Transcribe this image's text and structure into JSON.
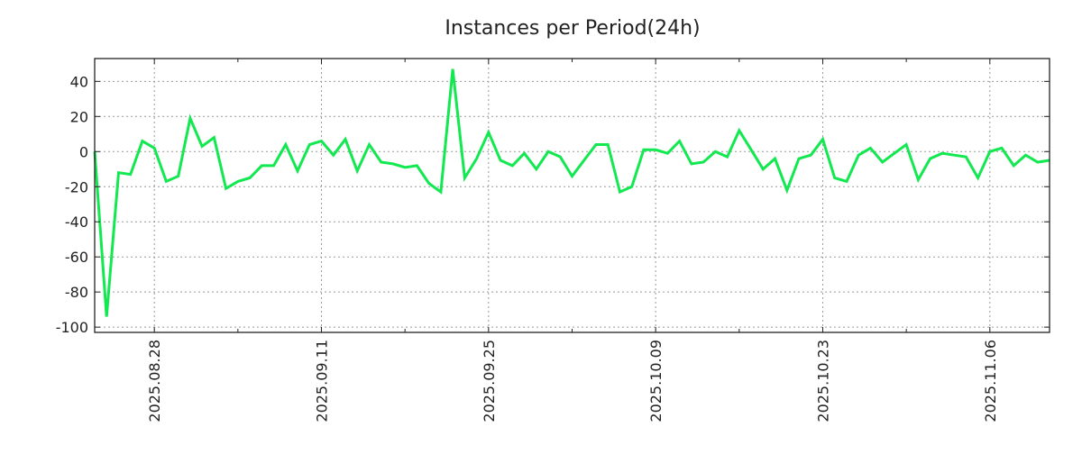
{
  "chart_data": {
    "type": "line",
    "title": "Instances per Period(24h)",
    "xlabel": "",
    "ylabel": "",
    "start_date": "2025.08.23",
    "x_unit": "day",
    "ylim": [
      -103,
      53
    ],
    "yticks": [
      40,
      20,
      0,
      -20,
      -40,
      -60,
      -80,
      -100
    ],
    "ytick_labels": [
      "40",
      "20",
      "0",
      "-20",
      "-40",
      "-60",
      "-80",
      "-100"
    ],
    "xticks": [
      {
        "day": 5,
        "label": "2025.08.28"
      },
      {
        "day": 19,
        "label": "2025.09.11"
      },
      {
        "day": 33,
        "label": "2025.09.25"
      },
      {
        "day": 47,
        "label": "2025.10.09"
      },
      {
        "day": 61,
        "label": "2025.10.23"
      },
      {
        "day": 75,
        "label": "2025.11.06"
      }
    ],
    "minor_xticks": [
      12,
      26,
      40,
      54,
      68
    ],
    "grid": true,
    "series": [
      {
        "name": "Instances",
        "color": "#12e84f",
        "values": [
          0,
          -94,
          -12,
          -13,
          6,
          2,
          -17,
          -14,
          19,
          3,
          8,
          -21,
          -17,
          -15,
          -8,
          -8,
          4,
          -11,
          4,
          6,
          -2,
          7,
          -11,
          4,
          -6,
          -7,
          -9,
          -8,
          -18,
          -23,
          47,
          -15,
          -4,
          11,
          -5,
          -8,
          -1,
          -10,
          0,
          -3,
          -14,
          -5,
          4,
          4,
          -23,
          -20,
          1,
          1,
          -1,
          6,
          -7,
          -6,
          0,
          -3,
          12,
          1,
          -10,
          -4,
          -22,
          -4,
          -2,
          7,
          -15,
          -17,
          -2,
          2,
          -6,
          -1,
          4,
          -16,
          -4,
          -1,
          -2,
          -3,
          -15,
          0,
          2,
          -8,
          -2,
          -6,
          -5
        ]
      }
    ]
  }
}
